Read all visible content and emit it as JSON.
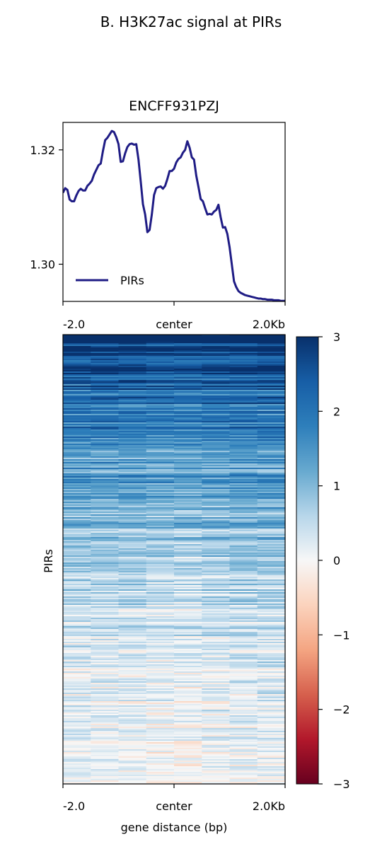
{
  "figure": {
    "suptitle": "B. H3K27ac signal at PIRs"
  },
  "chart_data": [
    {
      "type": "line",
      "title": "ENCFF931PZJ",
      "xlabel": "",
      "ylabel": "",
      "x_ticks": [
        "-2.0",
        "center",
        "2.0Kb"
      ],
      "x_range": [
        -2000,
        2000
      ],
      "ylim": [
        1.2935,
        1.3248
      ],
      "y_ticks": [
        1.3,
        1.32
      ],
      "y_tick_labels": [
        "1.30",
        "1.32"
      ],
      "legend": {
        "placement": "lower-left",
        "entries": [
          "PIRs"
        ]
      },
      "series": [
        {
          "name": "PIRs",
          "color": "#1f1c85",
          "x": [
            -2000,
            -1960,
            -1920,
            -1880,
            -1840,
            -1800,
            -1760,
            -1720,
            -1680,
            -1640,
            -1600,
            -1560,
            -1520,
            -1480,
            -1440,
            -1400,
            -1360,
            -1320,
            -1280,
            -1240,
            -1200,
            -1160,
            -1120,
            -1080,
            -1040,
            -1000,
            -960,
            -920,
            -880,
            -840,
            -800,
            -760,
            -720,
            -680,
            -640,
            -600,
            -560,
            -520,
            -480,
            -440,
            -400,
            -360,
            -320,
            -280,
            -240,
            -200,
            -160,
            -120,
            -80,
            -40,
            0,
            40,
            80,
            120,
            160,
            200,
            240,
            280,
            320,
            360,
            400,
            440,
            480,
            520,
            560,
            600,
            640,
            680,
            720,
            760,
            800,
            840,
            880,
            920,
            960,
            1000,
            1040,
            1080,
            1120,
            1160,
            1200,
            1240,
            1280,
            1320,
            1360,
            1400,
            1440,
            1480,
            1520,
            1560,
            1600,
            1640,
            1680,
            1720,
            1760,
            1800,
            1840,
            1880,
            1920,
            1960,
            2000
          ],
          "values": [
            1.3125,
            1.3133,
            1.313,
            1.3113,
            1.311,
            1.311,
            1.312,
            1.3128,
            1.3132,
            1.3129,
            1.3129,
            1.3137,
            1.3141,
            1.3146,
            1.3157,
            1.3165,
            1.3173,
            1.3176,
            1.3198,
            1.3217,
            1.3221,
            1.3227,
            1.3233,
            1.3231,
            1.3222,
            1.321,
            1.3179,
            1.318,
            1.3194,
            1.3205,
            1.321,
            1.3211,
            1.3209,
            1.321,
            1.3183,
            1.3145,
            1.3105,
            1.3087,
            1.3056,
            1.306,
            1.3087,
            1.3121,
            1.3133,
            1.3135,
            1.3136,
            1.3132,
            1.3137,
            1.3149,
            1.3163,
            1.3163,
            1.3167,
            1.3178,
            1.3184,
            1.3187,
            1.3195,
            1.32,
            1.3215,
            1.3204,
            1.3187,
            1.3183,
            1.3155,
            1.3135,
            1.3114,
            1.311,
            1.3098,
            1.3087,
            1.3088,
            1.3087,
            1.3092,
            1.3095,
            1.3104,
            1.3082,
            1.3064,
            1.3065,
            1.3053,
            1.303,
            1.3,
            1.297,
            1.296,
            1.2953,
            1.295,
            1.2948,
            1.2946,
            1.2945,
            1.2944,
            1.2943,
            1.2942,
            1.2941,
            1.294,
            1.294,
            1.2939,
            1.2939,
            1.2938,
            1.2938,
            1.2938,
            1.2937,
            1.2937,
            1.2937,
            1.2936,
            1.2936,
            1.2936
          ]
        }
      ]
    },
    {
      "type": "heatmap",
      "title": "",
      "xlabel": "gene distance (bp)",
      "ylabel": "PIRs",
      "x_ticks": [
        "-2.0",
        "center",
        "2.0Kb"
      ],
      "x_range": [
        -2000,
        2000
      ],
      "colormap": "RdBu",
      "colorbar": {
        "range": [
          -3,
          3
        ],
        "ticks": [
          3,
          2,
          1,
          0,
          -1,
          -2,
          -3
        ],
        "tick_labels": [
          "3",
          "2",
          "1",
          "0",
          "−1",
          "−2",
          "−3"
        ],
        "stops": [
          {
            "value": 3.0,
            "color": "#08306b"
          },
          {
            "value": 2.4,
            "color": "#175ea6"
          },
          {
            "value": 1.8,
            "color": "#2e7fbb"
          },
          {
            "value": 1.2,
            "color": "#67a9cf"
          },
          {
            "value": 0.6,
            "color": "#b7d6ea"
          },
          {
            "value": 0.0,
            "color": "#f7f7f7"
          },
          {
            "value": -0.6,
            "color": "#fbd3bd"
          },
          {
            "value": -1.2,
            "color": "#f4a582"
          },
          {
            "value": -1.8,
            "color": "#d6604d"
          },
          {
            "value": -2.4,
            "color": "#b2182b"
          },
          {
            "value": -3.0,
            "color": "#67001f"
          }
        ]
      },
      "row_profile": {
        "description_fraction_sorted": [
          0,
          0.1,
          0.2,
          0.35,
          0.5,
          0.65,
          0.8,
          1.0
        ],
        "mean_value": [
          2.9,
          2.3,
          1.8,
          1.3,
          0.8,
          0.45,
          0.2,
          0.05
        ]
      }
    }
  ]
}
